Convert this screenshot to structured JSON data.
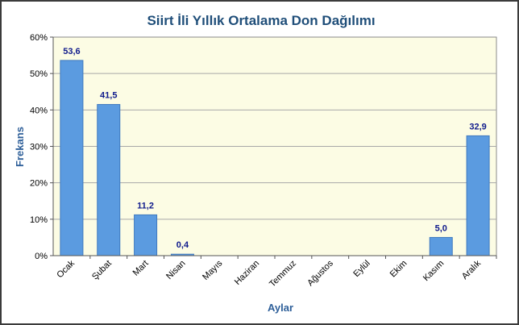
{
  "chart_data": {
    "type": "bar",
    "title": "Siirt İli Yıllık Ortalama Don Dağılımı",
    "xlabel": "Aylar",
    "ylabel": "Frekans",
    "categories": [
      "Ocak",
      "Şubat",
      "Mart",
      "Nisan",
      "Mayıs",
      "Haziran",
      "Temmuz",
      "Ağustos",
      "Eylül",
      "Ekim",
      "Kasım",
      "Aralık"
    ],
    "values": [
      53.6,
      41.5,
      11.2,
      0.4,
      null,
      null,
      null,
      null,
      null,
      null,
      5.0,
      32.9
    ],
    "data_labels": [
      "53,6",
      "41,5",
      "11,2",
      "0,4",
      "",
      "",
      "",
      "",
      "",
      "",
      "5,0",
      "32,9"
    ],
    "ylim": [
      0,
      60
    ],
    "yticks": [
      0,
      10,
      20,
      30,
      40,
      50,
      60
    ],
    "ytick_labels": [
      "0%",
      "10%",
      "20%",
      "30%",
      "40%",
      "50%",
      "60%"
    ],
    "grid": true,
    "legend": "none",
    "colors": {
      "bar": "#5b9be0",
      "bar_edge": "#3f79bf",
      "plot_bg": "#fcfce4",
      "grid": "#a8a8a8",
      "title": "#1f4e79",
      "axis_title": "#2e5f99",
      "data_label": "#0f1a8c"
    }
  }
}
